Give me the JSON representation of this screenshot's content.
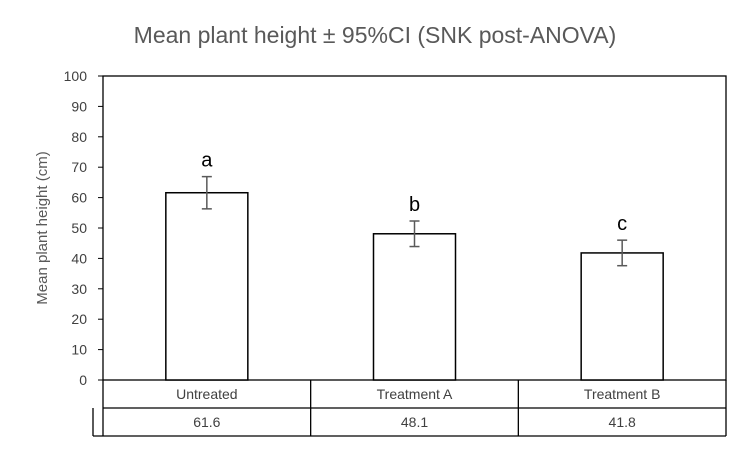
{
  "chart_data": {
    "type": "bar",
    "title": "Mean plant height ± 95%CI (SNK post-ANOVA)",
    "xlabel": "",
    "ylabel": "Mean plant height (cm)",
    "ylim": [
      0,
      100
    ],
    "yticks": [
      0,
      10,
      20,
      30,
      40,
      50,
      60,
      70,
      80,
      90,
      100
    ],
    "categories": [
      "Untreated",
      "Treatment A",
      "Treatment B"
    ],
    "values": [
      61.6,
      48.1,
      41.8
    ],
    "value_labels": [
      "61.6",
      "48.1",
      "41.8"
    ],
    "ci_low": [
      56.3,
      43.9,
      37.6
    ],
    "ci_high": [
      66.9,
      52.3,
      46.0
    ],
    "significance_letters": [
      "a",
      "b",
      "c"
    ],
    "data_table": true,
    "grid": false,
    "colors": {
      "bar_fill": "#ffffff",
      "bar_stroke": "#000000",
      "error_bar": "#595959"
    }
  }
}
